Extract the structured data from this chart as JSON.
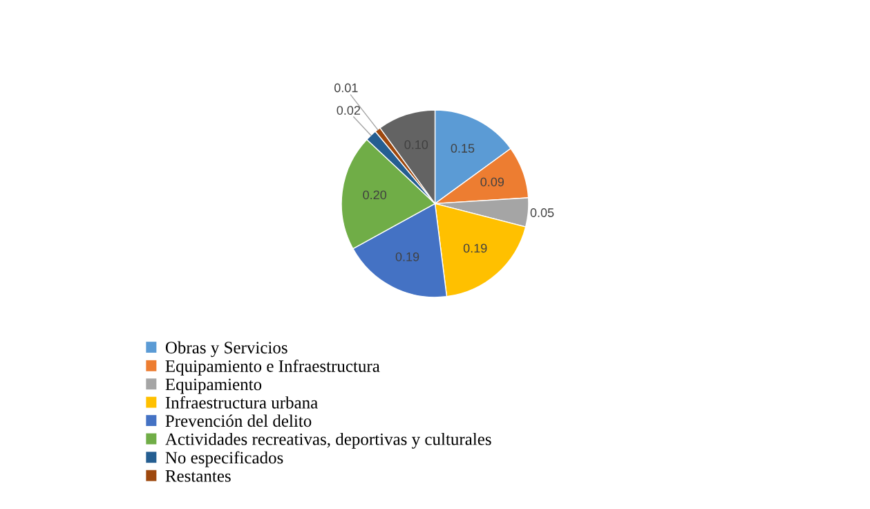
{
  "chart_data": {
    "type": "pie",
    "categories": [
      "Obras y Servicios",
      "Equipamiento e Infraestructura",
      "Equipamiento",
      "Infraestructura urbana",
      "Prevención del delito",
      "Actividades recreativas, deportivas y culturales",
      "No especificados",
      "Restantes",
      null
    ],
    "values": [
      0.15,
      0.09,
      0.05,
      0.19,
      0.19,
      0.2,
      0.02,
      0.01,
      0.1
    ],
    "value_labels": [
      "0.15",
      "0.09",
      "0.05",
      "0.19",
      "0.19",
      "0.20",
      "0.02",
      "0.01",
      "0.10"
    ],
    "colors": [
      "#5b9bd5",
      "#ed7d31",
      "#a5a5a5",
      "#ffc000",
      "#4472c4",
      "#70ad47",
      "#255e91",
      "#9e480e",
      "#636363"
    ],
    "legend": "bottom"
  }
}
